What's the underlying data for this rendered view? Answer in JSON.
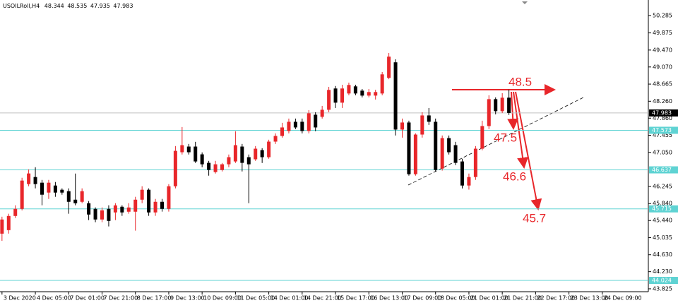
{
  "chart_data": {
    "type": "candlestick",
    "title": "USOILRoll,H4",
    "up_color": "#e8262a",
    "down_color": "#000000",
    "open": [
      45.129,
      45.212,
      45.547,
      45.715,
      46.301,
      46.468,
      46.334,
      46.1,
      46.267,
      46.167,
      46.133,
      45.932,
      45.882,
      45.849,
      45.715,
      45.464,
      45.715,
      45.631,
      45.765,
      45.648,
      45.648,
      45.932,
      46.167,
      45.631,
      45.882,
      45.715,
      46.25,
      47.054,
      47.188,
      47.188,
      47.004,
      46.803,
      46.585,
      46.635,
      46.769,
      46.836,
      47.188,
      46.937,
      46.887,
      47.104,
      46.937,
      47.305,
      47.439,
      47.556,
      47.774,
      47.774,
      47.556,
      47.941,
      47.891,
      48.058,
      48.561,
      48.226,
      48.443,
      48.611,
      48.51,
      48.393,
      48.393,
      48.443,
      48.812,
      49.18,
      47.59,
      47.757,
      46.535,
      47.472,
      47.924,
      47.774,
      46.669,
      47.388,
      47.221,
      46.836,
      46.267,
      46.468,
      47.138,
      47.673,
      48.309,
      48.025,
      48.344
    ],
    "high": [
      45.53,
      45.6,
      45.8,
      46.45,
      46.65,
      46.7,
      46.4,
      46.4,
      46.35,
      46.2,
      46.2,
      46.55,
      46.2,
      45.9,
      45.75,
      45.75,
      45.8,
      45.85,
      45.8,
      45.85,
      46.0,
      46.25,
      46.2,
      45.95,
      45.95,
      46.3,
      47.2,
      47.65,
      47.25,
      47.3,
      47.05,
      46.85,
      46.85,
      46.8,
      47.0,
      47.55,
      47.25,
      47.0,
      47.2,
      47.15,
      47.35,
      47.5,
      47.75,
      47.85,
      47.85,
      47.85,
      48.05,
      48.0,
      48.15,
      48.6,
      48.62,
      48.65,
      48.7,
      48.65,
      48.55,
      48.55,
      48.53,
      48.95,
      49.4,
      49.25,
      47.85,
      47.8,
      47.5,
      48.0,
      48.1,
      47.85,
      47.45,
      47.45,
      47.3,
      46.9,
      46.55,
      47.2,
      47.8,
      48.4,
      48.35,
      48.45,
      48.535
    ],
    "low": [
      44.96,
      45.13,
      45.5,
      45.68,
      46.25,
      46.2,
      45.8,
      45.95,
      46.0,
      46.05,
      45.6,
      45.8,
      45.85,
      45.45,
      45.4,
      45.4,
      45.3,
      45.45,
      45.55,
      45.6,
      45.2,
      45.85,
      45.55,
      45.55,
      45.65,
      45.65,
      46.2,
      47.0,
      47.0,
      46.8,
      46.7,
      46.5,
      46.55,
      46.6,
      46.7,
      46.8,
      46.6,
      45.85,
      46.85,
      46.8,
      46.9,
      47.25,
      47.4,
      47.5,
      47.6,
      47.5,
      47.5,
      47.55,
      47.85,
      48.0,
      48.1,
      48.1,
      48.4,
      48.4,
      48.35,
      48.35,
      48.3,
      48.4,
      48.78,
      47.45,
      47.4,
      46.5,
      46.5,
      47.4,
      47.7,
      46.6,
      46.62,
      47.0,
      46.75,
      46.2,
      46.17,
      46.4,
      47.1,
      47.6,
      47.95,
      47.98,
      47.935
    ],
    "close": [
      45.464,
      45.547,
      45.715,
      46.384,
      46.552,
      46.301,
      46.05,
      46.334,
      46.1,
      46.1,
      45.882,
      45.849,
      46.133,
      45.581,
      45.464,
      45.681,
      45.43,
      45.798,
      45.631,
      45.748,
      45.932,
      46.167,
      45.631,
      45.882,
      45.715,
      46.25,
      47.087,
      47.221,
      47.054,
      46.836,
      46.769,
      46.635,
      46.769,
      46.769,
      46.937,
      47.221,
      46.803,
      46.769,
      47.138,
      46.937,
      47.305,
      47.439,
      47.64,
      47.774,
      47.64,
      47.556,
      47.975,
      47.64,
      48.058,
      48.527,
      48.226,
      48.561,
      48.644,
      48.443,
      48.393,
      48.477,
      48.477,
      48.895,
      49.314,
      47.59,
      47.757,
      46.535,
      47.472,
      47.924,
      47.774,
      46.635,
      47.388,
      47.054,
      46.803,
      46.267,
      46.468,
      47.138,
      47.673,
      48.309,
      48.025,
      48.343,
      47.983
    ],
    "xlim": [
      -0.3,
      96.9
    ],
    "xticks": [
      {
        "value": 0,
        "label": "3 Dec 2020"
      },
      {
        "value": 5,
        "label": "4 Dec 05:00"
      },
      {
        "value": 10,
        "label": "7 Dec 01:00"
      },
      {
        "value": 15,
        "label": "7 Dec 21:00"
      },
      {
        "value": 20,
        "label": "8 Dec 17:00"
      },
      {
        "value": 25,
        "label": "9 Dec 13:00"
      },
      {
        "value": 30,
        "label": "10 Dec 09:00"
      },
      {
        "value": 35,
        "label": "11 Dec 05:00"
      },
      {
        "value": 40,
        "label": "14 Dec 01:00"
      },
      {
        "value": 45,
        "label": "14 Dec 21:00"
      },
      {
        "value": 50,
        "label": "15 Dec 17:00"
      },
      {
        "value": 55,
        "label": "16 Dec 13:00"
      },
      {
        "value": 60,
        "label": "17 Dec 09:00"
      },
      {
        "value": 65,
        "label": "18 Dec 05:00"
      },
      {
        "value": 70,
        "label": "21 Dec 01:00"
      },
      {
        "value": 75,
        "label": "21 Dec 21:00"
      },
      {
        "value": 80,
        "label": "22 Dec 17:00"
      },
      {
        "value": 85,
        "label": "23 Dec 13:00"
      },
      {
        "value": 90,
        "label": "24 Dec 09:00"
      }
    ],
    "ylim": [
      43.757,
      50.653
    ],
    "yticks": [
      50.285,
      49.875,
      {
        "value": 49.47,
        "label": "49.470"
      },
      {
        "value": 49.07,
        "label": "49.070"
      },
      48.665,
      {
        "value": 48.26,
        "label": "48.260"
      },
      {
        "value": 47.86,
        "label": "47.860"
      },
      47.455,
      {
        "value": 47.05,
        "label": "47.050"
      },
      46.245,
      {
        "value": 45.84,
        "label": "45.840"
      },
      {
        "value": 45.44,
        "label": "45.440"
      },
      45.035,
      {
        "value": 44.63,
        "label": "44.630"
      },
      {
        "value": 44.23,
        "label": "44.230"
      },
      43.825
    ],
    "levels": {
      "color": "#5fd3d3",
      "values": [
        47.573,
        46.637,
        45.715,
        44.024
      ]
    },
    "price_line_color": "#c0c0c0",
    "annotations": [
      "48.5",
      "47.5",
      "46.6",
      "45.7"
    ]
  }
}
